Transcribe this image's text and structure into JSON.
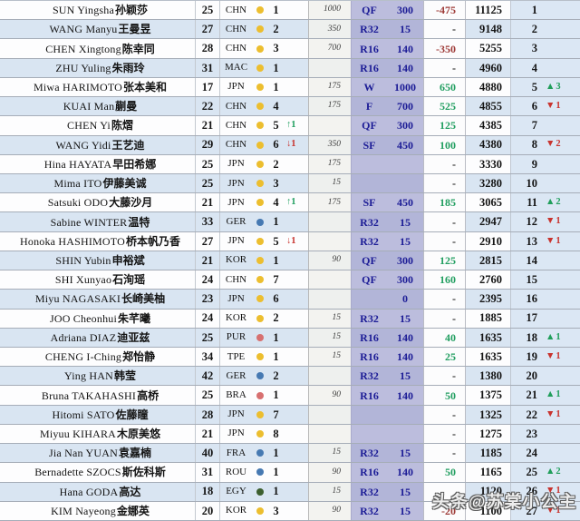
{
  "colors": {
    "continent": {
      "asia": "#ecbe2f",
      "europe": "#4679b2",
      "americas": "#d77070",
      "africa": "#3c5f2f"
    },
    "round_text": "#1c1c96",
    "positive": "#219e60",
    "negative": "#9e3b38",
    "rank_up": "#1f9e5a",
    "rank_down": "#c8332e",
    "row_alt_bg": "#d9e5f2",
    "round_col_bg": "#b7b8da",
    "rank_band_bg": "#dbe7f4"
  },
  "watermark": {
    "text": "头条@苏棠小公主"
  },
  "table": {
    "rows": [
      {
        "name_en": "SUN Yingsha",
        "name_zh": "孙颖莎",
        "age": "25",
        "noc": "CHN",
        "continent": "asia",
        "nat_rank": "1",
        "nat_rank_change": "",
        "prev_pts": "1000",
        "round": "QF",
        "round_pts": "300",
        "change": "-475",
        "total": "11125",
        "rank": "1",
        "rank_change": ""
      },
      {
        "name_en": "WANG Manyu",
        "name_zh": "王曼昱",
        "age": "27",
        "noc": "CHN",
        "continent": "asia",
        "nat_rank": "2",
        "nat_rank_change": "",
        "prev_pts": "350",
        "round": "R32",
        "round_pts": "15",
        "change": "-",
        "total": "9148",
        "rank": "2",
        "rank_change": ""
      },
      {
        "name_en": "CHEN Xingtong",
        "name_zh": "陈幸同",
        "age": "28",
        "noc": "CHN",
        "continent": "asia",
        "nat_rank": "3",
        "nat_rank_change": "",
        "prev_pts": "700",
        "round": "R16",
        "round_pts": "140",
        "change": "-350",
        "total": "5255",
        "rank": "3",
        "rank_change": ""
      },
      {
        "name_en": "ZHU Yuling",
        "name_zh": "朱雨玲",
        "age": "31",
        "noc": "MAC",
        "continent": "asia",
        "nat_rank": "1",
        "nat_rank_change": "",
        "prev_pts": "",
        "round": "R16",
        "round_pts": "140",
        "change": "-",
        "total": "4960",
        "rank": "4",
        "rank_change": ""
      },
      {
        "name_en": "Miwa HARIMOTO",
        "name_zh": "张本美和",
        "age": "17",
        "noc": "JPN",
        "continent": "asia",
        "nat_rank": "1",
        "nat_rank_change": "",
        "prev_pts": "175",
        "round": "W",
        "round_pts": "1000",
        "change": "650",
        "total": "4880",
        "rank": "5",
        "rank_change": "▲3"
      },
      {
        "name_en": "KUAI Man",
        "name_zh": "蒯曼",
        "age": "22",
        "noc": "CHN",
        "continent": "asia",
        "nat_rank": "4",
        "nat_rank_change": "",
        "prev_pts": "175",
        "round": "F",
        "round_pts": "700",
        "change": "525",
        "total": "4855",
        "rank": "6",
        "rank_change": "▼1"
      },
      {
        "name_en": "CHEN Yi",
        "name_zh": "陈熠",
        "age": "21",
        "noc": "CHN",
        "continent": "asia",
        "nat_rank": "5",
        "nat_rank_change": "↑1",
        "prev_pts": "",
        "round": "QF",
        "round_pts": "300",
        "change": "125",
        "total": "4385",
        "rank": "7",
        "rank_change": ""
      },
      {
        "name_en": "WANG Yidi",
        "name_zh": "王艺迪",
        "age": "29",
        "noc": "CHN",
        "continent": "asia",
        "nat_rank": "6",
        "nat_rank_change": "↓1",
        "prev_pts": "350",
        "round": "SF",
        "round_pts": "450",
        "change": "100",
        "total": "4380",
        "rank": "8",
        "rank_change": "▼2"
      },
      {
        "name_en": "Hina HAYATA",
        "name_zh": "早田希娜",
        "age": "25",
        "noc": "JPN",
        "continent": "asia",
        "nat_rank": "2",
        "nat_rank_change": "",
        "prev_pts": "175",
        "round": "",
        "round_pts": "",
        "change": "-",
        "total": "3330",
        "rank": "9",
        "rank_change": ""
      },
      {
        "name_en": "Mima ITO",
        "name_zh": "伊藤美诚",
        "age": "25",
        "noc": "JPN",
        "continent": "asia",
        "nat_rank": "3",
        "nat_rank_change": "",
        "prev_pts": "15",
        "round": "",
        "round_pts": "",
        "change": "-",
        "total": "3280",
        "rank": "10",
        "rank_change": ""
      },
      {
        "name_en": "Satsuki ODO",
        "name_zh": "大藤沙月",
        "age": "21",
        "noc": "JPN",
        "continent": "asia",
        "nat_rank": "4",
        "nat_rank_change": "↑1",
        "prev_pts": "175",
        "round": "SF",
        "round_pts": "450",
        "change": "185",
        "total": "3065",
        "rank": "11",
        "rank_change": "▲2"
      },
      {
        "name_en": "Sabine WINTER",
        "name_zh": "温特",
        "age": "33",
        "noc": "GER",
        "continent": "europe",
        "nat_rank": "1",
        "nat_rank_change": "",
        "prev_pts": "",
        "round": "R32",
        "round_pts": "15",
        "change": "-",
        "total": "2947",
        "rank": "12",
        "rank_change": "▼1"
      },
      {
        "name_en": "Honoka HASHIMOTO",
        "name_zh": "桥本帆乃香",
        "age": "27",
        "noc": "JPN",
        "continent": "asia",
        "nat_rank": "5",
        "nat_rank_change": "↓1",
        "prev_pts": "",
        "round": "R32",
        "round_pts": "15",
        "change": "-",
        "total": "2910",
        "rank": "13",
        "rank_change": "▼1"
      },
      {
        "name_en": "SHIN Yubin",
        "name_zh": "申裕斌",
        "age": "21",
        "noc": "KOR",
        "continent": "asia",
        "nat_rank": "1",
        "nat_rank_change": "",
        "prev_pts": "90",
        "round": "QF",
        "round_pts": "300",
        "change": "125",
        "total": "2815",
        "rank": "14",
        "rank_change": ""
      },
      {
        "name_en": "SHI Xunyao",
        "name_zh": "石洵瑶",
        "age": "24",
        "noc": "CHN",
        "continent": "asia",
        "nat_rank": "7",
        "nat_rank_change": "",
        "prev_pts": "",
        "round": "QF",
        "round_pts": "300",
        "change": "160",
        "total": "2760",
        "rank": "15",
        "rank_change": ""
      },
      {
        "name_en": "Miyu NAGASAKI",
        "name_zh": "长崎美柚",
        "age": "23",
        "noc": "JPN",
        "continent": "asia",
        "nat_rank": "6",
        "nat_rank_change": "",
        "prev_pts": "",
        "round": "",
        "round_pts": "0",
        "change": "-",
        "total": "2395",
        "rank": "16",
        "rank_change": ""
      },
      {
        "name_en": "JOO Cheonhui",
        "name_zh": "朱芊曦",
        "age": "24",
        "noc": "KOR",
        "continent": "asia",
        "nat_rank": "2",
        "nat_rank_change": "",
        "prev_pts": "15",
        "round": "R32",
        "round_pts": "15",
        "change": "-",
        "total": "1885",
        "rank": "17",
        "rank_change": ""
      },
      {
        "name_en": "Adriana DIAZ",
        "name_zh": "迪亚兹",
        "age": "25",
        "noc": "PUR",
        "continent": "americas",
        "nat_rank": "1",
        "nat_rank_change": "",
        "prev_pts": "15",
        "round": "R16",
        "round_pts": "140",
        "change": "40",
        "total": "1635",
        "rank": "18",
        "rank_change": "▲1"
      },
      {
        "name_en": "CHENG I-Ching",
        "name_zh": "郑怡静",
        "age": "34",
        "noc": "TPE",
        "continent": "asia",
        "nat_rank": "1",
        "nat_rank_change": "",
        "prev_pts": "15",
        "round": "R16",
        "round_pts": "140",
        "change": "25",
        "total": "1635",
        "rank": "19",
        "rank_change": "▼1"
      },
      {
        "name_en": "Ying HAN",
        "name_zh": "韩莹",
        "age": "42",
        "noc": "GER",
        "continent": "europe",
        "nat_rank": "2",
        "nat_rank_change": "",
        "prev_pts": "",
        "round": "R32",
        "round_pts": "15",
        "change": "-",
        "total": "1380",
        "rank": "20",
        "rank_change": ""
      },
      {
        "name_en": "Bruna TAKAHASHI",
        "name_zh": "高桥",
        "age": "25",
        "noc": "BRA",
        "continent": "americas",
        "nat_rank": "1",
        "nat_rank_change": "",
        "prev_pts": "90",
        "round": "R16",
        "round_pts": "140",
        "change": "50",
        "total": "1375",
        "rank": "21",
        "rank_change": "▲1"
      },
      {
        "name_en": "Hitomi SATO",
        "name_zh": "佐藤瞳",
        "age": "28",
        "noc": "JPN",
        "continent": "asia",
        "nat_rank": "7",
        "nat_rank_change": "",
        "prev_pts": "",
        "round": "",
        "round_pts": "",
        "change": "-",
        "total": "1325",
        "rank": "22",
        "rank_change": "▼1"
      },
      {
        "name_en": "Miyuu KIHARA",
        "name_zh": "木原美悠",
        "age": "21",
        "noc": "JPN",
        "continent": "asia",
        "nat_rank": "8",
        "nat_rank_change": "",
        "prev_pts": "",
        "round": "",
        "round_pts": "",
        "change": "-",
        "total": "1275",
        "rank": "23",
        "rank_change": ""
      },
      {
        "name_en": "Jia Nan YUAN",
        "name_zh": "袁嘉楠",
        "age": "40",
        "noc": "FRA",
        "continent": "europe",
        "nat_rank": "1",
        "nat_rank_change": "",
        "prev_pts": "15",
        "round": "R32",
        "round_pts": "15",
        "change": "-",
        "total": "1185",
        "rank": "24",
        "rank_change": ""
      },
      {
        "name_en": "Bernadette SZOCS",
        "name_zh": "斯佐科斯",
        "age": "31",
        "noc": "ROU",
        "continent": "europe",
        "nat_rank": "1",
        "nat_rank_change": "",
        "prev_pts": "90",
        "round": "R16",
        "round_pts": "140",
        "change": "50",
        "total": "1165",
        "rank": "25",
        "rank_change": "▲2"
      },
      {
        "name_en": "Hana GODA",
        "name_zh": "高达",
        "age": "18",
        "noc": "EGY",
        "continent": "africa",
        "nat_rank": "1",
        "nat_rank_change": "",
        "prev_pts": "15",
        "round": "R32",
        "round_pts": "15",
        "change": "",
        "total": "1120",
        "rank": "26",
        "rank_change": "▼1"
      },
      {
        "name_en": "KIM Nayeong",
        "name_zh": "金娜英",
        "age": "20",
        "noc": "KOR",
        "continent": "asia",
        "nat_rank": "3",
        "nat_rank_change": "",
        "prev_pts": "90",
        "round": "R32",
        "round_pts": "15",
        "change": "-20",
        "total": "1100",
        "rank": "27",
        "rank_change": "▼1"
      }
    ]
  }
}
